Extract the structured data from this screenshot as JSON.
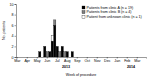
{
  "chart_data": {
    "type": "bar",
    "stacked": true,
    "legend": "top-right",
    "x_label": "Week of procedure",
    "y_label": "No. patients",
    "annotations": [
      "2013",
      "2014"
    ],
    "categories": [
      "Mar",
      null,
      null,
      null,
      "Apr",
      null,
      null,
      null,
      "May",
      null,
      null,
      null,
      "Jun",
      null,
      null,
      null,
      "Jul",
      null,
      null,
      null,
      "Aug",
      null,
      null,
      null,
      "Sep",
      null,
      null,
      null,
      "Oct",
      null,
      null,
      null,
      "Nov",
      null,
      null,
      null,
      "Dec",
      null,
      null,
      null,
      "Jan",
      null,
      null,
      null,
      "Feb",
      null,
      null,
      null,
      "Mar",
      null,
      null,
      null
    ],
    "series": [
      {
        "name": "Patients from clinic A (n = 19)",
        "color": "#000000",
        "values": [
          0,
          0,
          0,
          0,
          0,
          0,
          0,
          0,
          0,
          1,
          0,
          2,
          0,
          1,
          3,
          6,
          2,
          0,
          2,
          0,
          1,
          0,
          1,
          0,
          0,
          0,
          0,
          0,
          0,
          0,
          0,
          0,
          0,
          0,
          0,
          0,
          0,
          0,
          0,
          0,
          0,
          0,
          0,
          0,
          0,
          0,
          0,
          0,
          0,
          0,
          0,
          0
        ]
      },
      {
        "name": "Patients from clinic B (n = 4)",
        "color": "#808080",
        "values": [
          0,
          0,
          0,
          0,
          0,
          0,
          0,
          0,
          0,
          0,
          0,
          0,
          1,
          0,
          0,
          1,
          0,
          1,
          0,
          1,
          0,
          0,
          0,
          0,
          0,
          0,
          0,
          0,
          0,
          0,
          0,
          0,
          0,
          0,
          0,
          0,
          0,
          0,
          0,
          0,
          0,
          0,
          0,
          0,
          0,
          0,
          0,
          0,
          0,
          0,
          0,
          0
        ]
      },
      {
        "name": "Patient from unknown clinic (n = 1)",
        "color": "#ffffff",
        "values": [
          0,
          0,
          0,
          0,
          0,
          0,
          0,
          0,
          0,
          0,
          0,
          0,
          0,
          0,
          1,
          0,
          0,
          0,
          0,
          0,
          0,
          0,
          0,
          0,
          0,
          0,
          0,
          0,
          0,
          0,
          0,
          0,
          0,
          0,
          0,
          0,
          0,
          0,
          0,
          0,
          0,
          0,
          0,
          0,
          0,
          0,
          0,
          0,
          0,
          0,
          0,
          0
        ]
      }
    ],
    "ylim": [
      0,
      10
    ],
    "yticks": [
      0,
      2,
      4,
      6,
      8,
      10
    ]
  }
}
